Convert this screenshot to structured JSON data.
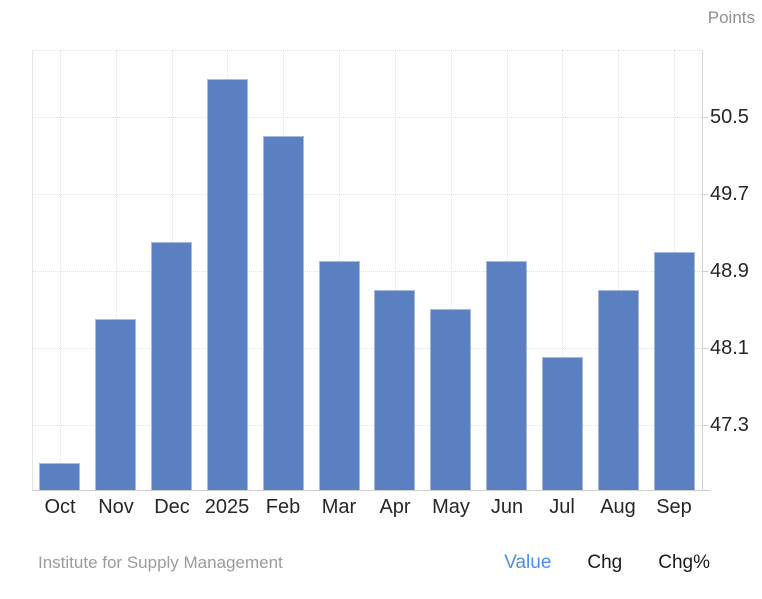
{
  "header": {
    "units_label": "Points"
  },
  "chart_data": {
    "type": "bar",
    "title": "",
    "xlabel": "",
    "ylabel": "Points",
    "categories": [
      "Oct",
      "Nov",
      "Dec",
      "2025",
      "Feb",
      "Mar",
      "Apr",
      "May",
      "Jun",
      "Jul",
      "Aug",
      "Sep"
    ],
    "values": [
      46.9,
      48.4,
      49.2,
      50.9,
      50.3,
      49.0,
      48.7,
      48.5,
      49.0,
      48.0,
      48.7,
      49.1
    ],
    "yticks": [
      50.5,
      49.7,
      48.9,
      48.1,
      47.3
    ],
    "ylim": [
      46.62,
      51.2
    ],
    "grid": true,
    "legend_position": "none",
    "bar_color": "#5b80c1",
    "bar_edge_color": "#a6badd",
    "grid_color": "#e2e2e2",
    "axis_color": "#cfcfcf",
    "tick_label_color": "#262626"
  },
  "footer": {
    "source": "Institute for Supply Management",
    "tabs": [
      {
        "label": "Value",
        "active": true
      },
      {
        "label": "Chg",
        "active": false
      },
      {
        "label": "Chg%",
        "active": false
      }
    ],
    "active_tab_color": "#4d8fea"
  }
}
